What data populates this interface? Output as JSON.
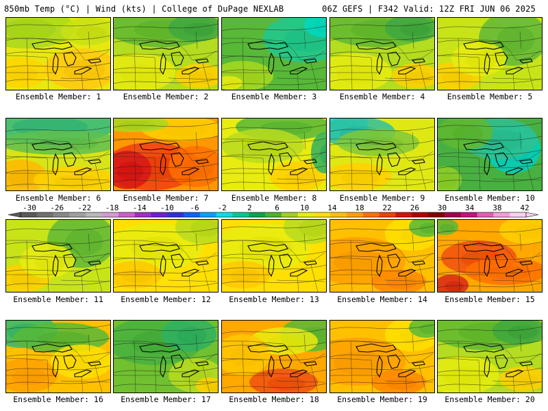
{
  "header": {
    "left": "850mb Temp (°C) | Wind (kts) | College of DuPage NEXLAB",
    "right": "06Z GEFS | F342 Valid: 12Z FRI JUN 06 2025"
  },
  "member_label_prefix": "Ensemble Member: ",
  "members": [
    {
      "id": "1",
      "theme": "warm-yellow"
    },
    {
      "id": "2",
      "theme": "green-yellow"
    },
    {
      "id": "3",
      "theme": "green-teal"
    },
    {
      "id": "4",
      "theme": "green-yellow"
    },
    {
      "id": "5",
      "theme": "yellow-green"
    },
    {
      "id": "6",
      "theme": "cool-north"
    },
    {
      "id": "7",
      "theme": "hot-red"
    },
    {
      "id": "8",
      "theme": "yellow-low"
    },
    {
      "id": "9",
      "theme": "cyan-northwest"
    },
    {
      "id": "10",
      "theme": "cold-green"
    },
    {
      "id": "11",
      "theme": "yellow-green"
    },
    {
      "id": "12",
      "theme": "yellow"
    },
    {
      "id": "13",
      "theme": "yellow"
    },
    {
      "id": "14",
      "theme": "orange"
    },
    {
      "id": "15",
      "theme": "orange-red"
    },
    {
      "id": "16",
      "theme": "green-orange"
    },
    {
      "id": "17",
      "theme": "green"
    },
    {
      "id": "18",
      "theme": "orange-low"
    },
    {
      "id": "19",
      "theme": "orange"
    },
    {
      "id": "20",
      "theme": "green-yellow"
    }
  ],
  "colorbar": {
    "tick_labels": [
      "-30",
      "-26",
      "-22",
      "-18",
      "-14",
      "-10",
      "-6",
      "-2",
      "2",
      "6",
      "10",
      "14",
      "18",
      "22",
      "26",
      "30",
      "34",
      "38",
      "42"
    ],
    "colors": [
      "#5a5a5a",
      "#707070",
      "#888888",
      "#a0a0a0",
      "#b8b8b8",
      "#d49ad4",
      "#c860c8",
      "#a030c0",
      "#7020d0",
      "#3030e0",
      "#1060ff",
      "#00a0ff",
      "#00e0e0",
      "#00c890",
      "#10a050",
      "#50b030",
      "#a0d020",
      "#e8f000",
      "#ffe000",
      "#ffc000",
      "#ffa000",
      "#ff7000",
      "#f04000",
      "#d81010",
      "#b00000",
      "#800000",
      "#a00050",
      "#c81080",
      "#e060b0",
      "#f0a0d8",
      "#f8d0f0"
    ]
  }
}
